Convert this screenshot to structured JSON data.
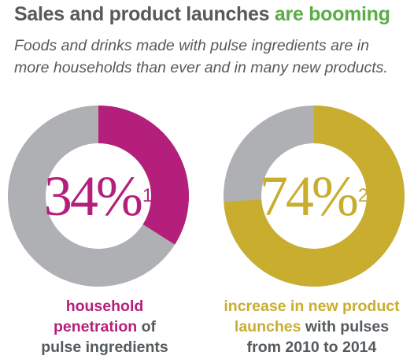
{
  "title": {
    "main": "Sales and product launches ",
    "accent": "are booming"
  },
  "subtitle": "Foods and drinks made with pulse ingredients are in more households than ever and in many new products.",
  "colors": {
    "ring_bg": "#aeb0b3",
    "magenta": "#b51f7c",
    "gold": "#c9ad2f",
    "text": "#555a5e",
    "green": "#5aad46"
  },
  "chart_data": [
    {
      "type": "pie",
      "value": 34,
      "label": "34%",
      "footnote": "1",
      "color": "#b51f7c",
      "caption": {
        "highlight_1": "household",
        "highlight_2": "penetration",
        "plain_1": " of",
        "plain_2": "pulse ingredients"
      }
    },
    {
      "type": "pie",
      "value": 74,
      "label": "74%",
      "footnote": "2",
      "color": "#c9ad2f",
      "caption": {
        "highlight_1": "increase in new product",
        "highlight_2": "launches",
        "plain_1": " with pulses",
        "plain_2": "from 2010 to 2014"
      }
    }
  ]
}
